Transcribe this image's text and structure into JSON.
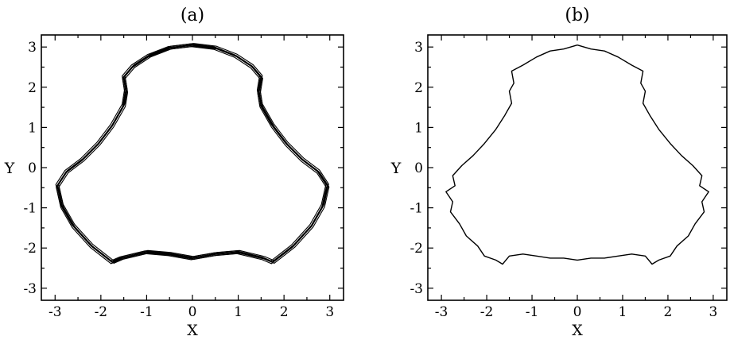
{
  "chart_data": [
    {
      "type": "line",
      "title": "(a)",
      "xlabel": "X",
      "ylabel": "Y",
      "xlim": [
        -3.3,
        3.3
      ],
      "ylim": [
        -3.3,
        3.3
      ],
      "xticks": [
        -3,
        -2,
        -1,
        0,
        1,
        2,
        3
      ],
      "yticks": [
        -3,
        -2,
        -1,
        0,
        1,
        2,
        3
      ],
      "grid": false,
      "style": "thick banded closed curve (many overlapping orbits)",
      "series": [
        {
          "points": [
            [
              0.0,
              3.05
            ],
            [
              0.5,
              2.98
            ],
            [
              0.95,
              2.78
            ],
            [
              1.3,
              2.52
            ],
            [
              1.5,
              2.25
            ],
            [
              1.45,
              1.9
            ],
            [
              1.5,
              1.55
            ],
            [
              1.75,
              1.05
            ],
            [
              2.05,
              0.6
            ],
            [
              2.4,
              0.2
            ],
            [
              2.75,
              -0.1
            ],
            [
              2.95,
              -0.45
            ],
            [
              2.85,
              -0.95
            ],
            [
              2.6,
              -1.45
            ],
            [
              2.2,
              -1.95
            ],
            [
              1.75,
              -2.35
            ],
            [
              1.55,
              -2.25
            ],
            [
              1.0,
              -2.1
            ],
            [
              0.5,
              -2.15
            ],
            [
              0.0,
              -2.25
            ],
            [
              -0.5,
              -2.15
            ],
            [
              -1.0,
              -2.1
            ],
            [
              -1.55,
              -2.25
            ],
            [
              -1.75,
              -2.35
            ],
            [
              -2.2,
              -1.95
            ],
            [
              -2.6,
              -1.45
            ],
            [
              -2.85,
              -0.95
            ],
            [
              -2.95,
              -0.45
            ],
            [
              -2.75,
              -0.1
            ],
            [
              -2.4,
              0.2
            ],
            [
              -2.05,
              0.6
            ],
            [
              -1.75,
              1.05
            ],
            [
              -1.5,
              1.55
            ],
            [
              -1.45,
              1.9
            ],
            [
              -1.5,
              2.25
            ],
            [
              -1.3,
              2.52
            ],
            [
              -0.95,
              2.78
            ],
            [
              -0.5,
              2.98
            ],
            [
              0.0,
              3.05
            ]
          ]
        }
      ]
    },
    {
      "type": "line",
      "title": "(b)",
      "xlabel": "X",
      "ylabel": "Y",
      "xlim": [
        -3.3,
        3.3
      ],
      "ylim": [
        -3.3,
        3.3
      ],
      "xticks": [
        -3,
        -2,
        -1,
        0,
        1,
        2,
        3
      ],
      "yticks": [
        -3,
        -2,
        -1,
        0,
        1,
        2,
        3
      ],
      "grid": false,
      "style": "thin wiggly closed curve",
      "series": [
        {
          "points": [
            [
              0.0,
              3.05
            ],
            [
              0.3,
              2.95
            ],
            [
              0.6,
              2.9
            ],
            [
              0.9,
              2.75
            ],
            [
              1.2,
              2.55
            ],
            [
              1.45,
              2.4
            ],
            [
              1.4,
              2.1
            ],
            [
              1.5,
              1.9
            ],
            [
              1.45,
              1.6
            ],
            [
              1.6,
              1.3
            ],
            [
              1.8,
              0.95
            ],
            [
              2.05,
              0.6
            ],
            [
              2.3,
              0.3
            ],
            [
              2.55,
              0.05
            ],
            [
              2.75,
              -0.2
            ],
            [
              2.7,
              -0.45
            ],
            [
              2.9,
              -0.6
            ],
            [
              2.75,
              -0.85
            ],
            [
              2.8,
              -1.1
            ],
            [
              2.6,
              -1.4
            ],
            [
              2.45,
              -1.7
            ],
            [
              2.2,
              -1.95
            ],
            [
              2.05,
              -2.2
            ],
            [
              1.8,
              -2.3
            ],
            [
              1.65,
              -2.4
            ],
            [
              1.5,
              -2.2
            ],
            [
              1.2,
              -2.15
            ],
            [
              0.9,
              -2.2
            ],
            [
              0.6,
              -2.25
            ],
            [
              0.3,
              -2.25
            ],
            [
              0.0,
              -2.3
            ],
            [
              -0.3,
              -2.25
            ],
            [
              -0.6,
              -2.25
            ],
            [
              -0.9,
              -2.2
            ],
            [
              -1.2,
              -2.15
            ],
            [
              -1.5,
              -2.2
            ],
            [
              -1.65,
              -2.4
            ],
            [
              -1.8,
              -2.3
            ],
            [
              -2.05,
              -2.2
            ],
            [
              -2.2,
              -1.95
            ],
            [
              -2.45,
              -1.7
            ],
            [
              -2.6,
              -1.4
            ],
            [
              -2.8,
              -1.1
            ],
            [
              -2.75,
              -0.85
            ],
            [
              -2.9,
              -0.6
            ],
            [
              -2.7,
              -0.45
            ],
            [
              -2.75,
              -0.2
            ],
            [
              -2.55,
              0.05
            ],
            [
              -2.3,
              0.3
            ],
            [
              -2.05,
              0.6
            ],
            [
              -1.8,
              0.95
            ],
            [
              -1.6,
              1.3
            ],
            [
              -1.45,
              1.6
            ],
            [
              -1.5,
              1.9
            ],
            [
              -1.4,
              2.1
            ],
            [
              -1.45,
              2.4
            ],
            [
              -1.2,
              2.55
            ],
            [
              -0.9,
              2.75
            ],
            [
              -0.6,
              2.9
            ],
            [
              -0.3,
              2.95
            ],
            [
              0.0,
              3.05
            ]
          ]
        }
      ]
    }
  ]
}
